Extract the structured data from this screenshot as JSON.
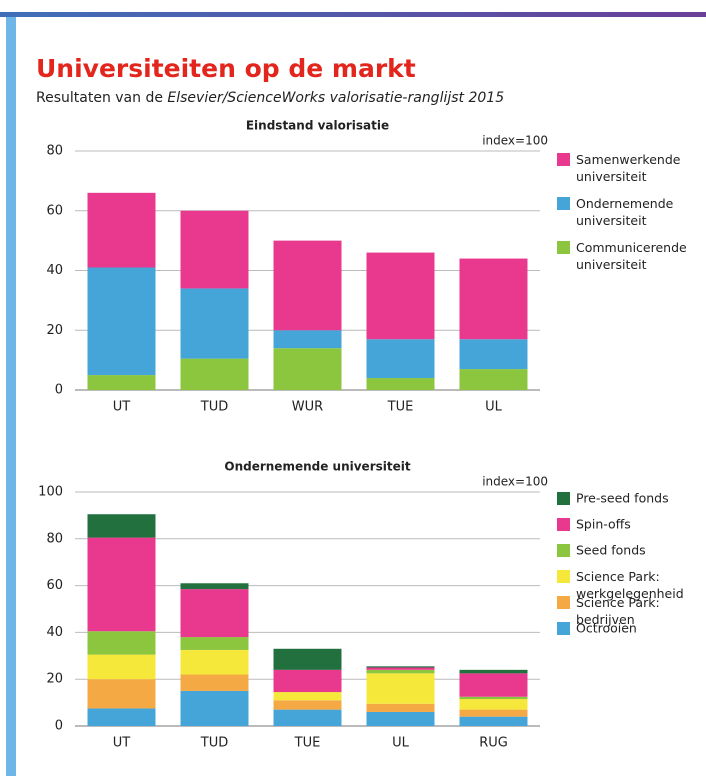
{
  "title": "Universiteiten op de markt",
  "subtitle": [
    "Resultaten van de",
    "Elsevier/ScienceWorks valorisatie-ranglijst 2015"
  ],
  "chart_data": [
    {
      "type": "stacked-bar",
      "title": "Eindstand valorisatie",
      "annotation": "index=100",
      "categories": [
        "UT",
        "TUD",
        "WUR",
        "TUE",
        "UL"
      ],
      "series": [
        {
          "name": "Communicerende universiteit",
          "color": "#8cc63f",
          "values": [
            5,
            10.5,
            14,
            4,
            7
          ]
        },
        {
          "name": "Ondernemende universiteit",
          "color": "#46a5d8",
          "values": [
            36,
            23.5,
            6,
            13,
            10
          ]
        },
        {
          "name": "Samenwerkende universiteit",
          "color": "#e8398f",
          "values": [
            25,
            26,
            30,
            29,
            27
          ]
        }
      ],
      "ylim": [
        0,
        80
      ],
      "yticks": [
        0,
        20,
        40,
        60,
        80
      ],
      "grid": true
    },
    {
      "type": "stacked-bar",
      "title": "Ondernemende universiteit",
      "annotation": "index=100",
      "categories": [
        "UT",
        "TUD",
        "TUE",
        "UL",
        "RUG"
      ],
      "series": [
        {
          "name": "Octrooien",
          "color": "#46a5d8",
          "values": [
            7.5,
            15,
            7,
            6,
            4
          ]
        },
        {
          "name": "Science Park: bedrijven",
          "color": "#f5a945",
          "values": [
            12.5,
            7,
            4,
            3.5,
            3
          ]
        },
        {
          "name": "Science Park: werkgelegenheid",
          "color": "#f5e83a",
          "values": [
            10.5,
            10.5,
            3.5,
            13,
            4.5
          ]
        },
        {
          "name": "Seed fonds",
          "color": "#8cc63f",
          "values": [
            10,
            5.5,
            0,
            1.5,
            1
          ]
        },
        {
          "name": "Spin-offs",
          "color": "#e8398f",
          "values": [
            40,
            20.5,
            9.5,
            1,
            10
          ]
        },
        {
          "name": "Pre-seed fonds",
          "color": "#23703f",
          "values": [
            10,
            2.5,
            9,
            0.5,
            1.5
          ]
        }
      ],
      "ylim": [
        0,
        100
      ],
      "yticks": [
        0,
        20,
        40,
        60,
        80,
        100
      ],
      "grid": true
    }
  ]
}
